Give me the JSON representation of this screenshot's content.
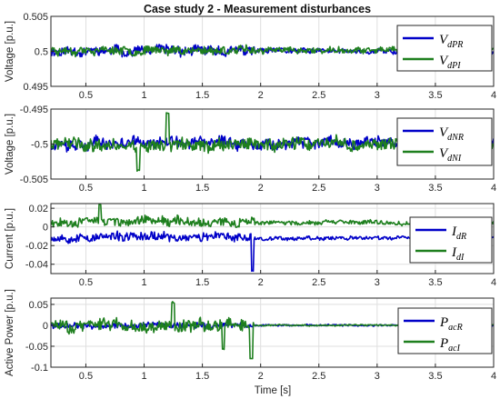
{
  "chart_data": {
    "title": "Case study 2 - Measurement disturbances",
    "x_axis": {
      "label": "Time [s]",
      "range": [
        0.2,
        4.0
      ],
      "ticks": [
        0.5,
        1,
        1.5,
        2,
        2.5,
        3,
        3.5,
        4
      ],
      "tick_labels": [
        "0.5",
        "1",
        "1.5",
        "2",
        "2.5",
        "3",
        "3.5",
        "4"
      ]
    },
    "grid": true,
    "colors": {
      "series_R": "#0000c8",
      "series_I": "#1e7f1e",
      "frame": "#262626",
      "grid": "#dfdfdf"
    },
    "panels": [
      {
        "type": "line",
        "ylabel": "Voltage [p.u.]",
        "ylim": [
          0.495,
          0.505
        ],
        "yticks": [
          0.495,
          0.5,
          0.505
        ],
        "ytick_labels": [
          "0.495",
          "0.5",
          "0.505"
        ],
        "legend_position": "top-right",
        "series": [
          {
            "name": "V",
            "name_sub": "dPR",
            "color": "#0000c8",
            "seed": 11,
            "pre_mean": 0.50005,
            "pre_amp": 0.00135,
            "post_mean": 0.50002,
            "post_amp": 0.00075,
            "spikes": []
          },
          {
            "name": "V",
            "name_sub": "dPI",
            "color": "#1e7f1e",
            "seed": 23,
            "pre_mean": 0.50018,
            "pre_amp": 0.00115,
            "post_mean": 0.50012,
            "post_amp": 0.0008,
            "spikes": []
          }
        ]
      },
      {
        "type": "line",
        "ylabel": "Voltage [p.u.]",
        "ylim": [
          -0.505,
          -0.495
        ],
        "yticks": [
          -0.495,
          -0.5,
          -0.505
        ],
        "ytick_labels": [
          "-0.495",
          "-0.5",
          "-0.505"
        ],
        "legend_position": "top-right",
        "series": [
          {
            "name": "V",
            "name_sub": "dNR",
            "color": "#0000c8",
            "seed": 37,
            "pre_mean": -0.49985,
            "pre_amp": 0.0016,
            "post_mean": -0.49985,
            "post_amp": 0.0015,
            "spikes": []
          },
          {
            "name": "V",
            "name_sub": "dNI",
            "color": "#1e7f1e",
            "seed": 41,
            "pre_mean": -0.5001,
            "pre_amp": 0.0018,
            "post_mean": -0.5001,
            "post_amp": 0.0017,
            "spikes": [
              [
                0.95,
                -0.5038
              ],
              [
                1.2,
                -0.4955
              ]
            ]
          }
        ]
      },
      {
        "type": "line",
        "ylabel": "Current [p.u.]",
        "ylim": [
          -0.05,
          0.025
        ],
        "yticks": [
          0.02,
          0,
          -0.02,
          -0.04
        ],
        "ytick_labels": [
          "0.02",
          "0",
          "-0.02",
          "-0.04"
        ],
        "legend_position": "right",
        "series": [
          {
            "name": "I",
            "name_sub": "dR",
            "color": "#0000c8",
            "seed": 53,
            "pre_mean": -0.011,
            "pre_amp": 0.009,
            "post_mean": -0.012,
            "post_amp": 0.004,
            "spikes": [
              [
                1.93,
                -0.047
              ]
            ]
          },
          {
            "name": "I",
            "name_sub": "dI",
            "color": "#1e7f1e",
            "seed": 67,
            "pre_mean": 0.006,
            "pre_amp": 0.0095,
            "post_mean": 0.0045,
            "post_amp": 0.004,
            "spikes": [
              [
                0.62,
                0.024
              ]
            ]
          }
        ]
      },
      {
        "type": "line",
        "ylabel": "Active Power [p.u.]",
        "ylim": [
          -0.1,
          0.065
        ],
        "yticks": [
          0.05,
          0,
          -0.05,
          -0.1
        ],
        "ytick_labels": [
          "0.05",
          "0",
          "-0.05",
          "-0.1"
        ],
        "legend_position": "top-right",
        "series": [
          {
            "name": "P",
            "name_sub": "acR",
            "color": "#0000c8",
            "seed": 79,
            "pre_mean": 0.0,
            "pre_amp": 0.014,
            "post_mean": 0.0,
            "post_amp": 0.004,
            "spikes": []
          },
          {
            "name": "P",
            "name_sub": "acI",
            "color": "#1e7f1e",
            "seed": 83,
            "pre_mean": 0.0,
            "pre_amp": 0.028,
            "post_mean": 0.0,
            "post_amp": 0.003,
            "spikes": [
              [
                1.92,
                -0.08
              ],
              [
                1.25,
                0.055
              ],
              [
                1.68,
                -0.058
              ]
            ]
          }
        ]
      }
    ]
  }
}
